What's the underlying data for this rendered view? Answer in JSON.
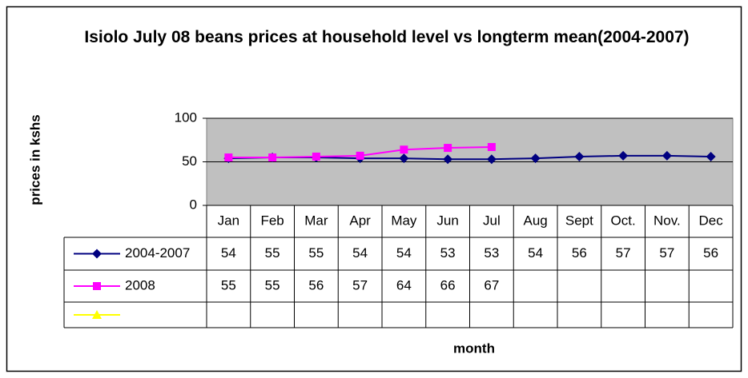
{
  "chart_data": {
    "type": "line",
    "title": "Isiolo July 08 beans prices at household level vs longterm mean(2004-2007)",
    "y_label": "prices in kshs",
    "x_label": "month",
    "categories": [
      "Jan",
      "Feb",
      "Mar",
      "Apr",
      "May",
      "Jun",
      "Jul",
      "Aug",
      "Sept",
      "Oct.",
      "Nov.",
      "Dec"
    ],
    "series": [
      {
        "name": "2004-2007",
        "color": "#000080",
        "marker": "diamond",
        "values": [
          54,
          55,
          55,
          54,
          54,
          53,
          53,
          54,
          56,
          57,
          57,
          56
        ]
      },
      {
        "name": "2008",
        "color": "#ff00ff",
        "marker": "square",
        "values": [
          55,
          55,
          56,
          57,
          64,
          66,
          67,
          null,
          null,
          null,
          null,
          null
        ]
      },
      {
        "color": "#ffff00",
        "marker": "triangle",
        "values": [
          null,
          null,
          null,
          null,
          null,
          null,
          null,
          null,
          null,
          null,
          null,
          null
        ]
      }
    ],
    "ylim": [
      0,
      100
    ],
    "yticks": [
      0,
      50,
      100
    ],
    "grid": true,
    "plot_background": "#c0c0c0",
    "data_table": true
  }
}
